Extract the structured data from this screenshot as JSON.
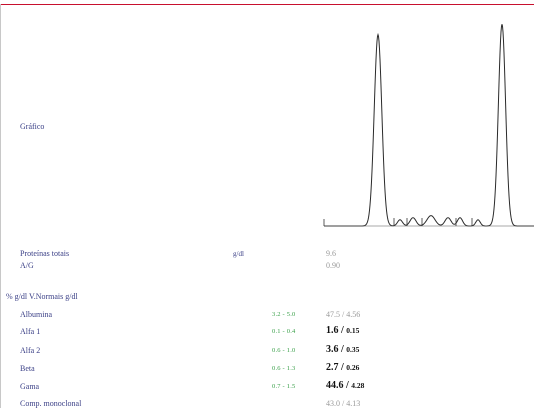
{
  "graph": {
    "label": "Gráfico",
    "peak_levels": [
      0.92,
      0.03,
      0.04,
      0.05,
      0.04,
      0.04,
      0.03,
      0.97
    ]
  },
  "summary": {
    "total_protein": {
      "label": "Proteínas totais",
      "unit": "g/dl",
      "value": "9.6"
    },
    "ag": {
      "label": "A/G",
      "value": "0.90"
    }
  },
  "fractions": {
    "header": "% g/dl V.Normais g/dl",
    "rows": [
      {
        "label": "Albumina",
        "range": "3.2 - 5.0",
        "value": "47.5 / 4.56",
        "abnormal": false
      },
      {
        "label": "Alfa 1",
        "range": "0.1 - 0.4",
        "pct": "1.6",
        "abs": "0.15",
        "abnormal": true
      },
      {
        "label": "Alfa 2",
        "range": "0.6 - 1.0",
        "pct": "3.6",
        "abs": "0.35",
        "abnormal": true
      },
      {
        "label": "Beta",
        "range": "0.6 - 1.3",
        "pct": "2.7",
        "abs": "0.26",
        "abnormal": true
      },
      {
        "label": "Gama",
        "range": "0.7 - 1.5",
        "pct": "44.6",
        "abs": "4.28",
        "abnormal": true
      },
      {
        "label": "Comp. monoclonal",
        "value": "43.0 / 4.13",
        "abnormal": false
      }
    ]
  }
}
